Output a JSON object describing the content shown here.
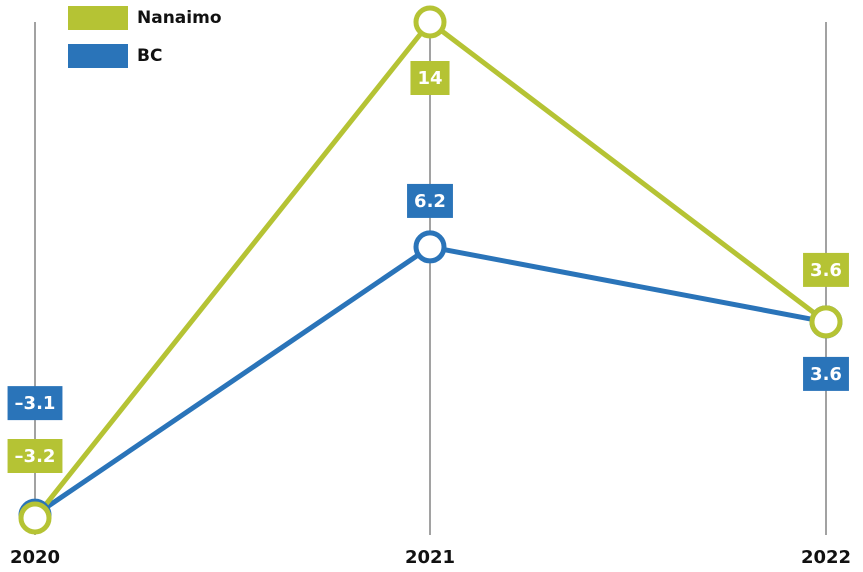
{
  "chart_data": {
    "type": "line",
    "categories": [
      "2020",
      "2021",
      "2022"
    ],
    "series": [
      {
        "name": "Nanaimo",
        "color": "#b5c334",
        "values": [
          -3.2,
          14,
          3.6
        ],
        "value_labels": [
          "–3.2",
          "14",
          "3.6"
        ]
      },
      {
        "name": "BC",
        "color": "#2a74b9",
        "values": [
          -3.1,
          6.2,
          3.6
        ],
        "value_labels": [
          "–3.1",
          "6.2",
          "3.6"
        ]
      }
    ]
  }
}
